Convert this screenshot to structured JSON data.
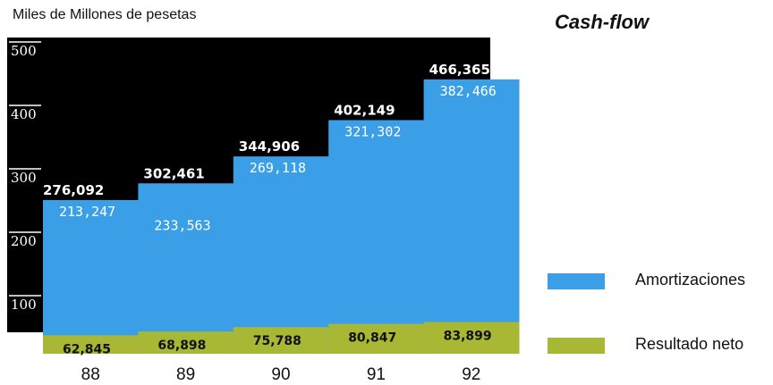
{
  "chart_data": {
    "type": "area",
    "title": "Cash-flow",
    "ylabel": "Miles de Millones de pesetas",
    "xlabel": "",
    "categories": [
      "88",
      "89",
      "90",
      "91",
      "92"
    ],
    "ylim": [
      0,
      500
    ],
    "yticks": [
      "100",
      "200",
      "300",
      "400",
      "500"
    ],
    "stacked": true,
    "series": [
      {
        "name": "Resultado neto",
        "color": "#a9b834",
        "values": [
          62.845,
          68.898,
          75.788,
          80.847,
          83.899
        ],
        "labels": [
          "62,845",
          "68,898",
          "75,788",
          "80,847",
          "83,899"
        ]
      },
      {
        "name": "Amortizaciones",
        "color": "#3a9fe6",
        "values": [
          213.247,
          233.563,
          269.118,
          321.302,
          382.466
        ],
        "labels": [
          "213,247",
          "233,563",
          "269,118",
          "321,302",
          "382,466"
        ]
      }
    ],
    "totals": {
      "values": [
        276.092,
        302.461,
        344.906,
        402.149,
        466.365
      ],
      "labels": [
        "276,092",
        "302,461",
        "344,906",
        "402,149",
        "466,365"
      ]
    },
    "legend_position": "right",
    "grid": false
  },
  "colors": {
    "background_panel": "#000000",
    "axis_text": "#ffffff",
    "text": "#111111"
  }
}
